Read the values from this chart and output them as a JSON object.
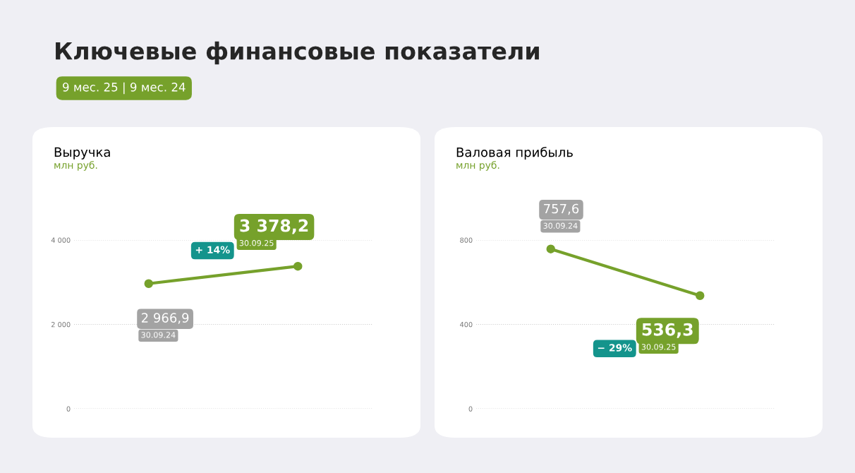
{
  "chart_data": [
    {
      "type": "line",
      "title": "Выручка",
      "subtitle": "млн руб.",
      "categories": [
        null,
        null
      ],
      "series": [
        {
          "color": "#76a12b",
          "values": [
            2966.9,
            3378.2
          ],
          "value_labels": [
            "2 966,9",
            "3 378,2"
          ]
        }
      ],
      "ylim": [
        0,
        4000
      ],
      "yticks": [
        {
          "value": 0,
          "label": "0"
        },
        {
          "value": 2000,
          "label": "2 000"
        },
        {
          "value": 4000,
          "label": "4 000"
        }
      ],
      "grid": "y",
      "marker": "circle",
      "annotations": [
        "Ключевые финансовые показатели",
        "9 мес. 25 | 9 мес. 24",
        "30.09.24",
        "30.09.25",
        "+ 14%"
      ]
    },
    {
      "type": "line",
      "title": "Валовая прибыль",
      "subtitle": "млн руб.",
      "categories": [
        null,
        null
      ],
      "series": [
        {
          "color": "#76a12b",
          "values": [
            757.6,
            536.3
          ],
          "value_labels": [
            "757,6",
            "536,3"
          ]
        }
      ],
      "ylim": [
        0,
        800
      ],
      "yticks": [
        0,
        400,
        800
      ],
      "grid": "y",
      "marker": "circle",
      "annotations": [
        "30.09.24",
        "30.09.25",
        "− 29%"
      ]
    }
  ]
}
